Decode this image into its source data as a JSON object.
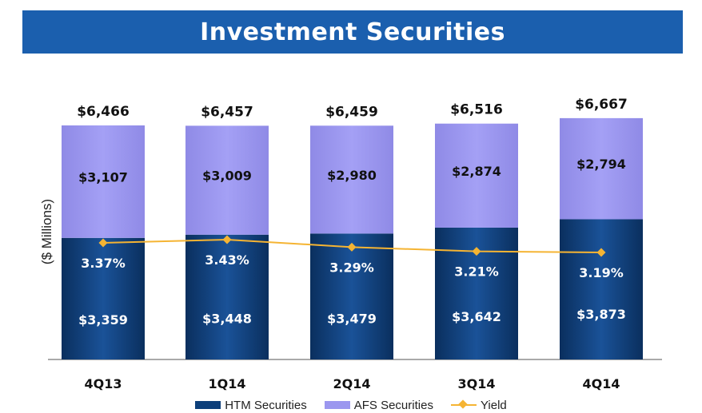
{
  "chart_data": {
    "type": "bar",
    "title": "Investment Securities",
    "ylabel": "($ Millions)",
    "categories": [
      "4Q13",
      "1Q14",
      "2Q14",
      "3Q14",
      "4Q14"
    ],
    "series": [
      {
        "name": "HTM Securities",
        "values": [
          3359,
          3448,
          3479,
          3642,
          3873
        ],
        "labels": [
          "$3,359",
          "$3,448",
          "$3,479",
          "$3,642",
          "$3,873"
        ],
        "color": "#0d3f7a"
      },
      {
        "name": "AFS Securities",
        "values": [
          3107,
          3009,
          2980,
          2874,
          2794
        ],
        "labels": [
          "$3,107",
          "$3,009",
          "$2,980",
          "$2,874",
          "$2,794"
        ],
        "color": "#9b97ef"
      }
    ],
    "totals": {
      "values": [
        6466,
        6457,
        6459,
        6516,
        6667
      ],
      "labels": [
        "$6,466",
        "$6,457",
        "$6,459",
        "$6,516",
        "$6,667"
      ]
    },
    "line": {
      "name": "Yield",
      "values": [
        3.37,
        3.43,
        3.29,
        3.21,
        3.19
      ],
      "labels": [
        "3.37%",
        "3.43%",
        "3.29%",
        "3.21%",
        "3.19%"
      ],
      "color": "#f5b433"
    },
    "stacked": true,
    "grid": false,
    "legend_position": "bottom"
  }
}
